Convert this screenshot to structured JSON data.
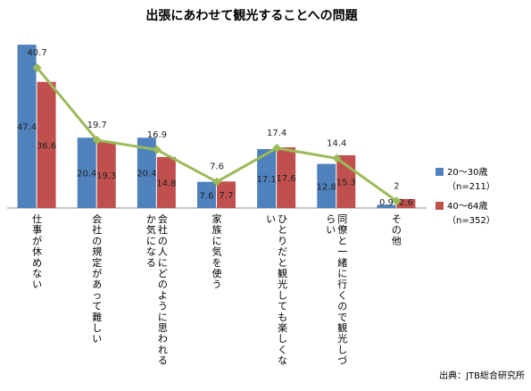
{
  "chart_data": {
    "type": "bar",
    "title": "出張にあわせて観光することへの問題",
    "categories": [
      "仕事が休めない",
      "会社の規定があって難しい",
      "会社の人にどのように思われるか気になる",
      "家族に気を使う",
      "ひとりだと観光しても楽しくない",
      "同僚と一緒に行くので観光しづらい",
      "その他"
    ],
    "series": [
      {
        "name": "20〜30歳",
        "sub": "（n=211）",
        "color": "#4f81bd",
        "values": [
          47.4,
          20.4,
          20.4,
          7.6,
          17.1,
          12.8,
          0.9
        ],
        "labels": [
          "47.4",
          "20.4",
          "20.4",
          "7.6",
          "17.1",
          "12.8",
          "0.9"
        ]
      },
      {
        "name": "40〜64歳",
        "sub": "（n=352）",
        "color": "#c0504d",
        "values": [
          36.6,
          19.3,
          14.8,
          7.7,
          17.6,
          15.3,
          2.6
        ],
        "labels": [
          "36.6",
          "19.3",
          "14.8",
          "7.7",
          "17.6",
          "15.3",
          "2.6"
        ]
      },
      {
        "type": "line",
        "color": "#9bbb59",
        "values": [
          40.7,
          19.7,
          16.9,
          7.6,
          17.4,
          14.4,
          2
        ],
        "labels": [
          "40.7",
          "19.7",
          "16.9",
          "7.6",
          "17.4",
          "14.4",
          "2"
        ]
      }
    ],
    "ylim": [
      0,
      50
    ],
    "grid": false,
    "legend": "right",
    "source": "出典：JTB総合研究所"
  }
}
